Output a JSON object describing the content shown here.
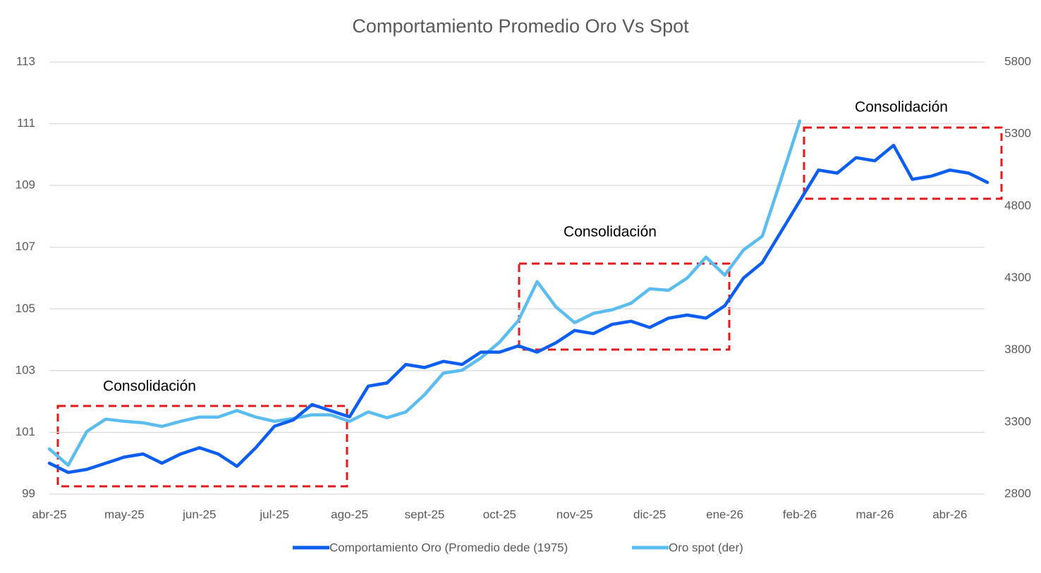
{
  "chart_data": {
    "type": "line",
    "title": "Comportamiento Promedio Oro Vs Spot",
    "categories": [
      "abr-25",
      null,
      null,
      null,
      "may-25",
      null,
      null,
      null,
      "jun-25",
      null,
      null,
      null,
      "jul-25",
      null,
      null,
      null,
      "ago-25",
      null,
      null,
      null,
      "sept-25",
      null,
      null,
      null,
      "oct-25",
      null,
      null,
      null,
      "nov-25",
      null,
      null,
      null,
      "dic-25",
      null,
      null,
      null,
      "ene-26",
      null,
      null,
      null,
      "feb-26",
      null,
      null,
      null,
      "mar-26",
      null,
      null,
      null,
      "abr-26",
      null,
      null
    ],
    "series": [
      {
        "name": "Comportamiento Oro (Promedio dede (1975)",
        "color": "#0b5ef0",
        "axis": "y",
        "values": [
          100.0,
          99.7,
          99.8,
          100.0,
          100.2,
          100.3,
          100.0,
          100.3,
          100.5,
          100.3,
          99.9,
          100.5,
          101.2,
          101.4,
          101.9,
          101.7,
          101.5,
          102.5,
          102.6,
          103.2,
          103.1,
          103.3,
          103.2,
          103.6,
          103.6,
          103.8,
          103.6,
          103.9,
          104.3,
          104.2,
          104.5,
          104.6,
          104.4,
          104.7,
          104.8,
          104.7,
          105.1,
          106.0,
          106.5,
          107.5,
          108.5,
          109.5,
          109.4,
          109.9,
          109.8,
          110.3,
          109.2,
          109.3,
          109.5,
          109.4,
          109.1
        ]
      },
      {
        "name": "Oro spot (der)",
        "color": "#5bbcf0",
        "axis": "y2",
        "values": [
          3113,
          3000,
          3235,
          3320,
          3305,
          3295,
          3270,
          3305,
          3335,
          3335,
          3380,
          3335,
          3305,
          3325,
          3350,
          3350,
          3305,
          3370,
          3330,
          3370,
          3490,
          3640,
          3660,
          3745,
          3855,
          4005,
          4275,
          4100,
          3990,
          4055,
          4080,
          4125,
          4225,
          4215,
          4300,
          4445,
          4320,
          4495,
          4590,
          4985,
          5390,
          null,
          null,
          null,
          null,
          null,
          null,
          null,
          null,
          null,
          null
        ]
      }
    ],
    "ylim": [
      99,
      113
    ],
    "yticks": [
      99,
      101,
      103,
      105,
      107,
      109,
      111,
      113
    ],
    "y2lim": [
      2800,
      5800
    ],
    "y2ticks": [
      2800,
      3300,
      3800,
      4300,
      4800,
      5300,
      5800
    ],
    "grid": true,
    "annotations": [
      "Consolidación",
      "Consolidación",
      "Consolidación"
    ]
  }
}
